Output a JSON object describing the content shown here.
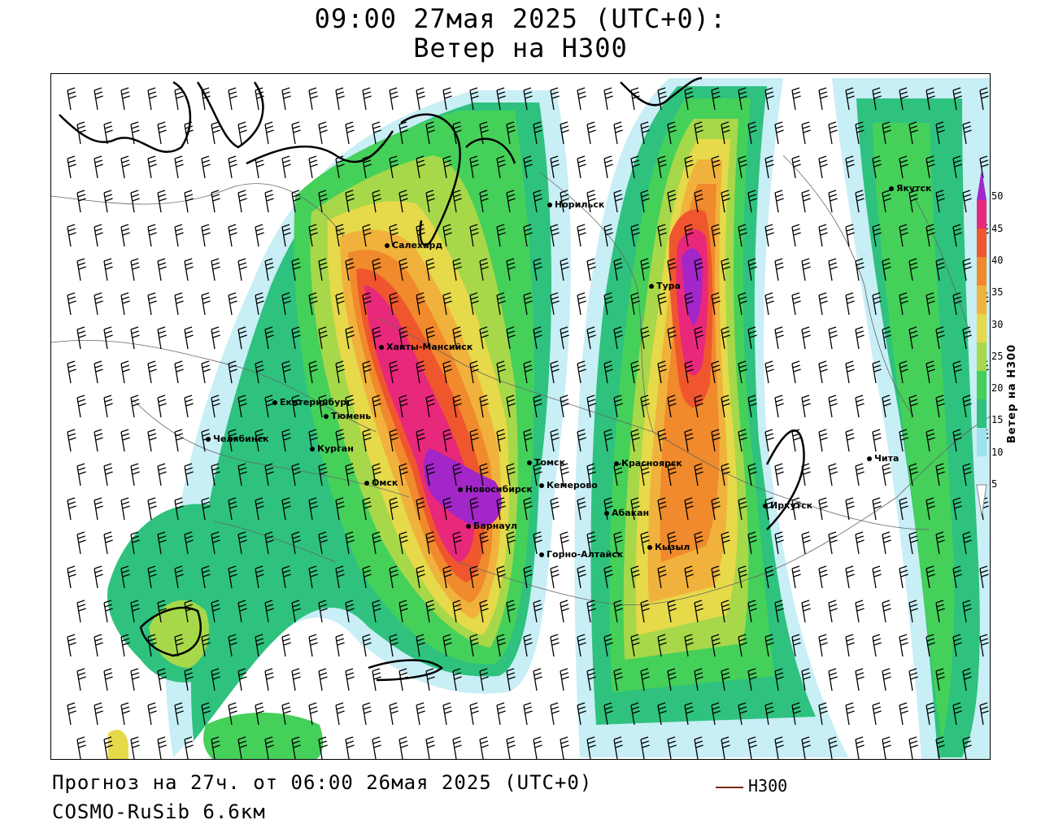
{
  "title": {
    "line1": "09:00 27мая 2025 (UTC+0):",
    "line2": "Ветер на Н300"
  },
  "footer": {
    "forecast": "Прогноз на 27ч. от 06:00 26мая 2025 (UTC+0)",
    "model": "COSMO-RuSib 6.6км"
  },
  "legend": {
    "contour_label": "H300",
    "contour_color": "#7a2a1a"
  },
  "colorbar": {
    "title": "Ветер на Н300",
    "ticks": [
      "5",
      "10",
      "15",
      "20",
      "25",
      "30",
      "35",
      "40",
      "45",
      "50"
    ],
    "colors": [
      "#c8eef6",
      "#9de2ee",
      "#2ec27e",
      "#45d05a",
      "#a6d84a",
      "#e6d94a",
      "#f0b23c",
      "#f08a2c",
      "#f0562e",
      "#e8287a",
      "#a226c8"
    ]
  },
  "cities": [
    {
      "name": "Якутск"
    },
    {
      "name": "Норильск"
    },
    {
      "name": "Салехард"
    },
    {
      "name": "Тура"
    },
    {
      "name": "Ханты-Мансийск"
    },
    {
      "name": "Екатеринбург"
    },
    {
      "name": "Тюмень"
    },
    {
      "name": "Челябинск"
    },
    {
      "name": "Курган"
    },
    {
      "name": "Омск"
    },
    {
      "name": "Новосибирск"
    },
    {
      "name": "Томск"
    },
    {
      "name": "Кемерово"
    },
    {
      "name": "Красноярск"
    },
    {
      "name": "Абакан"
    },
    {
      "name": "Барнаул"
    },
    {
      "name": "Горно-Алтайск"
    },
    {
      "name": "Кызыл"
    },
    {
      "name": "Иркутск"
    },
    {
      "name": "Чита"
    }
  ]
}
